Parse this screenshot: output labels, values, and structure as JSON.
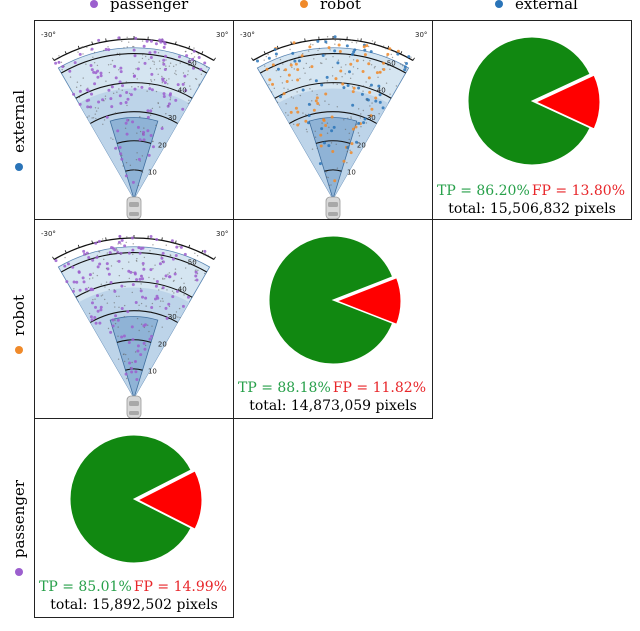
{
  "columns": [
    {
      "label": "passenger",
      "color": "#9c5fce"
    },
    {
      "label": "robot",
      "color": "#f08a2a"
    },
    {
      "label": "external",
      "color": "#2a74b8"
    }
  ],
  "rows": [
    {
      "label": "external",
      "color": "#2a74b8"
    },
    {
      "label": "robot",
      "color": "#f08a2a"
    },
    {
      "label": "passenger",
      "color": "#9c5fce"
    }
  ],
  "colors": {
    "tp": "#118811",
    "fp": "#ff0000"
  },
  "chart_data": [
    {
      "type": "pie",
      "row": "external",
      "column": "external",
      "labels": [
        "TP",
        "FP"
      ],
      "values": [
        86.2,
        13.8
      ],
      "tp_text": "TP = 86.20%",
      "fp_text": "FP = 13.80%",
      "total_text": "total: 15,506,832 pixels"
    },
    {
      "type": "pie",
      "row": "robot",
      "column": "robot",
      "labels": [
        "TP",
        "FP"
      ],
      "values": [
        88.18,
        11.82
      ],
      "tp_text": "TP = 88.18%",
      "fp_text": "FP = 11.82%",
      "total_text": "total: 14,873,059 pixels"
    },
    {
      "type": "pie",
      "row": "passenger",
      "column": "passenger",
      "labels": [
        "TP",
        "FP"
      ],
      "values": [
        85.01,
        14.99
      ],
      "tp_text": "TP = 85.01%",
      "fp_text": "FP = 14.99%",
      "total_text": "total: 15,892,502 pixels"
    },
    {
      "type": "scatter",
      "row": "external",
      "column": "passenger",
      "angle_range": [
        -30,
        30
      ],
      "range_ticks": [
        10,
        20,
        30,
        40,
        50
      ],
      "angle_labels": [
        "-30°",
        "30°"
      ],
      "point_series": [
        "passenger"
      ]
    },
    {
      "type": "scatter",
      "row": "external",
      "column": "robot",
      "angle_range": [
        -30,
        30
      ],
      "range_ticks": [
        10,
        20,
        30,
        40,
        50
      ],
      "angle_labels": [
        "-30°",
        "30°"
      ],
      "point_series": [
        "robot",
        "external"
      ]
    },
    {
      "type": "scatter",
      "row": "robot",
      "column": "passenger",
      "angle_range": [
        -30,
        30
      ],
      "range_ticks": [
        10,
        20,
        30,
        40,
        50
      ],
      "angle_labels": [
        "-30°",
        "30°"
      ],
      "point_series": [
        "passenger"
      ]
    }
  ]
}
